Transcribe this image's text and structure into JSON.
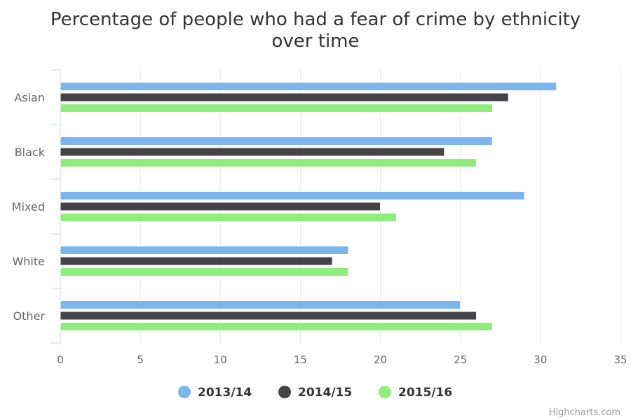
{
  "chart_data": {
    "type": "bar",
    "orientation": "horizontal",
    "title": "Percentage of people who had a fear of crime by ethnicity over time",
    "title_lines": [
      "Percentage of people who had a fear of crime by ethnicity",
      "over time"
    ],
    "categories": [
      "Asian",
      "Black",
      "Mixed",
      "White",
      "Other"
    ],
    "series": [
      {
        "name": "2013/14",
        "color": "#7cb5ec",
        "values": [
          31,
          27,
          29,
          18,
          25
        ]
      },
      {
        "name": "2014/15",
        "color": "#434348",
        "values": [
          28,
          24,
          20,
          17,
          26
        ]
      },
      {
        "name": "2015/16",
        "color": "#90ed7d",
        "values": [
          27,
          26,
          21,
          18,
          27
        ]
      }
    ],
    "xlim": [
      0,
      35
    ],
    "ticks": [
      0,
      5,
      10,
      15,
      20,
      25,
      30,
      35
    ],
    "grid": true,
    "legend": "bottom-center"
  },
  "credits": "Highcharts.com"
}
